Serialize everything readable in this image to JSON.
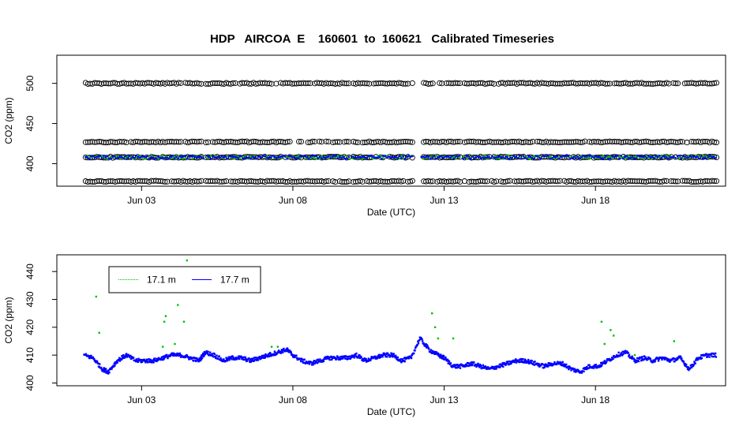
{
  "title": "HDP   AIRCOA  E    160601  to  160621   Calibrated Timeseries",
  "chart_data": [
    {
      "type": "scatter",
      "xlabel": "Date (UTC)",
      "ylabel": "CO2 (ppm)",
      "xlim": [
        0.2,
        22.3
      ],
      "ylim": [
        372,
        535
      ],
      "x_ticks": [
        {
          "x": 3,
          "label": "Jun 03"
        },
        {
          "x": 8,
          "label": "Jun 08"
        },
        {
          "x": 13,
          "label": "Jun 13"
        },
        {
          "x": 18,
          "label": "Jun 18"
        }
      ],
      "y_ticks": [
        400,
        450,
        500
      ],
      "grid": false,
      "series": [
        {
          "kind": "calibration-standards",
          "color": "#000000",
          "marker": "open-circle",
          "levels": [
            378,
            408,
            427,
            500
          ]
        },
        {
          "name": "17.1 m",
          "color": "#00c000",
          "marker": "point"
        },
        {
          "name": "17.7 m",
          "color": "#0000ff",
          "marker": "point"
        }
      ]
    },
    {
      "type": "scatter",
      "xlabel": "Date (UTC)",
      "ylabel": "CO2 (ppm)",
      "xlim": [
        0.2,
        22.3
      ],
      "ylim": [
        399,
        446
      ],
      "x_ticks": [
        {
          "x": 3,
          "label": "Jun 03"
        },
        {
          "x": 8,
          "label": "Jun 08"
        },
        {
          "x": 13,
          "label": "Jun 13"
        },
        {
          "x": 18,
          "label": "Jun 18"
        }
      ],
      "y_ticks": [
        400,
        410,
        420,
        430,
        440
      ],
      "grid": false,
      "legend": {
        "position": "top-left",
        "entries": [
          {
            "label": "17.1 m",
            "color": "#00c000"
          },
          {
            "label": "17.7 m",
            "color": "#0000ff"
          }
        ]
      },
      "series": [
        {
          "name": "17.7 m",
          "color": "#0000ff",
          "x": [
            1.1,
            1.4,
            1.7,
            1.9,
            2.2,
            2.5,
            2.8,
            3.1,
            3.4,
            3.7,
            4.0,
            4.3,
            4.6,
            4.9,
            5.1,
            5.4,
            5.7,
            6.0,
            6.3,
            6.6,
            6.9,
            7.2,
            7.5,
            7.8,
            8.0,
            8.3,
            8.6,
            8.9,
            9.2,
            9.5,
            9.8,
            10.1,
            10.4,
            10.7,
            11.0,
            11.3,
            11.6,
            11.9,
            12.2,
            12.5,
            12.8,
            13.0,
            13.3,
            13.6,
            13.9,
            14.2,
            14.5,
            14.8,
            15.1,
            15.4,
            15.7,
            16.0,
            16.3,
            16.6,
            16.9,
            17.2,
            17.5,
            17.8,
            18.1,
            18.4,
            18.7,
            19.0,
            19.3,
            19.6,
            19.9,
            20.2,
            20.5,
            20.8,
            21.1,
            21.4,
            21.7,
            22.0
          ],
          "y": [
            410,
            409,
            405,
            404,
            408,
            410,
            408,
            408,
            408,
            409,
            410,
            410,
            409,
            408,
            411,
            410,
            408,
            409,
            409,
            408,
            409,
            410,
            411,
            412,
            410,
            408,
            407,
            408,
            409,
            409,
            409,
            410,
            408,
            409,
            410,
            410,
            408,
            409,
            416,
            412,
            410,
            409,
            406,
            406,
            407,
            406,
            405,
            406,
            407,
            408,
            408,
            407,
            406,
            407,
            407,
            405,
            404,
            406,
            406,
            408,
            410,
            411,
            408,
            409,
            408,
            409,
            408,
            409,
            405,
            409,
            410,
            410
          ]
        },
        {
          "name": "17.1 m",
          "color": "#00c000",
          "x": [
            1.5,
            1.6,
            3.7,
            3.75,
            3.8,
            4.1,
            4.2,
            4.4,
            4.5,
            7.3,
            7.5,
            12.6,
            12.7,
            12.8,
            13.3,
            18.2,
            18.3,
            18.5,
            18.6,
            19.3,
            20.6
          ],
          "y": [
            431,
            418,
            413,
            422,
            424,
            414,
            428,
            422,
            444,
            413,
            413,
            425,
            420,
            416,
            416,
            422,
            414,
            419,
            417,
            410,
            415
          ]
        }
      ]
    }
  ]
}
